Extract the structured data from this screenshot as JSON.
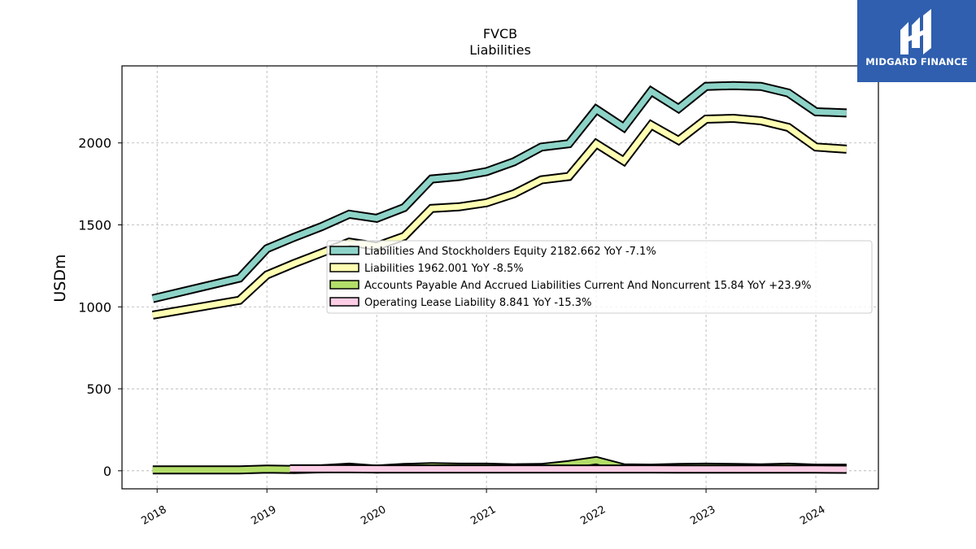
{
  "brand": {
    "logo_text": "MIDGARD FINANCE"
  },
  "chart_data": {
    "type": "line",
    "title": "FVCB",
    "subtitle": "Liabilities",
    "ylabel": "USDm",
    "xlabel": "",
    "ylim": [
      -110,
      2470
    ],
    "xlim": [
      2017.68,
      2024.57
    ],
    "yticks": [
      0,
      500,
      1000,
      1500,
      2000
    ],
    "xticks": [
      2018,
      2019,
      2020,
      2021,
      2022,
      2023,
      2024
    ],
    "grid": true,
    "legend_position": "center-right",
    "series": [
      {
        "name": "Liabilities And Stockholders Equity",
        "legend_label": "Liabilities And Stockholders Equity  2182.662 YoY -7.1%",
        "color": "#8dd3c7",
        "x": [
          2017.96,
          2018.75,
          2019.0,
          2019.25,
          2019.5,
          2019.75,
          2020.0,
          2020.25,
          2020.5,
          2020.75,
          2021.0,
          2021.25,
          2021.5,
          2021.75,
          2022.0,
          2022.25,
          2022.5,
          2022.75,
          2023.0,
          2023.25,
          2023.5,
          2023.75,
          2024.0,
          2024.28
        ],
        "y": [
          1050,
          1175,
          1355,
          1425,
          1490,
          1565,
          1540,
          1605,
          1780,
          1795,
          1825,
          1885,
          1975,
          1995,
          2205,
          2095,
          2315,
          2210,
          2345,
          2350,
          2345,
          2305,
          2190,
          2182.662
        ]
      },
      {
        "name": "Liabilities",
        "legend_label": "Liabilities  1962.001 YoY -8.5%",
        "color": "#ffffb3",
        "x": [
          2017.96,
          2018.75,
          2019.0,
          2019.25,
          2019.5,
          2019.75,
          2020.0,
          2020.25,
          2020.5,
          2020.75,
          2021.0,
          2021.25,
          2021.5,
          2021.75,
          2022.0,
          2022.25,
          2022.5,
          2022.75,
          2023.0,
          2023.25,
          2023.5,
          2023.75,
          2024.0,
          2024.28
        ],
        "y": [
          950,
          1040,
          1195,
          1265,
          1330,
          1395,
          1370,
          1430,
          1600,
          1610,
          1635,
          1690,
          1775,
          1795,
          1995,
          1890,
          2110,
          2015,
          2145,
          2150,
          2135,
          2095,
          1975,
          1962.001
        ]
      },
      {
        "name": "Accounts Payable And Accrued Liabilities Current And Noncurrent",
        "legend_label": "Accounts Payable And Accrued Liabilities Current And Noncurrent  15.84 YoY +23.9%",
        "color": "#b3de69",
        "x": [
          2017.96,
          2018.75,
          2019.0,
          2019.25,
          2019.5,
          2019.75,
          2020.0,
          2020.25,
          2020.5,
          2020.75,
          2021.0,
          2021.25,
          2021.5,
          2021.75,
          2022.0,
          2022.25,
          2022.5,
          2022.75,
          2023.0,
          2023.25,
          2023.5,
          2023.75,
          2024.0,
          2024.28
        ],
        "y": [
          5,
          5,
          10,
          8,
          12,
          22,
          10,
          20,
          25,
          22,
          22,
          18,
          20,
          38,
          62,
          18,
          16,
          20,
          22,
          20,
          18,
          22,
          16,
          15.84
        ]
      },
      {
        "name": "Operating Lease Liability",
        "legend_label": "Operating Lease Liability  8.841 YoY -15.3%",
        "color": "#fccde5",
        "x": [
          2019.21,
          2019.5,
          2019.75,
          2020.0,
          2020.25,
          2020.5,
          2020.75,
          2021.0,
          2021.25,
          2021.5,
          2021.75,
          2022.0,
          2022.25,
          2022.5,
          2022.75,
          2023.0,
          2023.25,
          2023.5,
          2023.75,
          2024.0,
          2024.28
        ],
        "y": [
          12,
          12,
          12,
          11,
          11,
          11,
          11,
          11,
          11,
          11,
          11,
          11,
          11,
          11,
          10,
          10,
          10,
          10,
          10,
          10,
          8.841
        ]
      }
    ]
  }
}
